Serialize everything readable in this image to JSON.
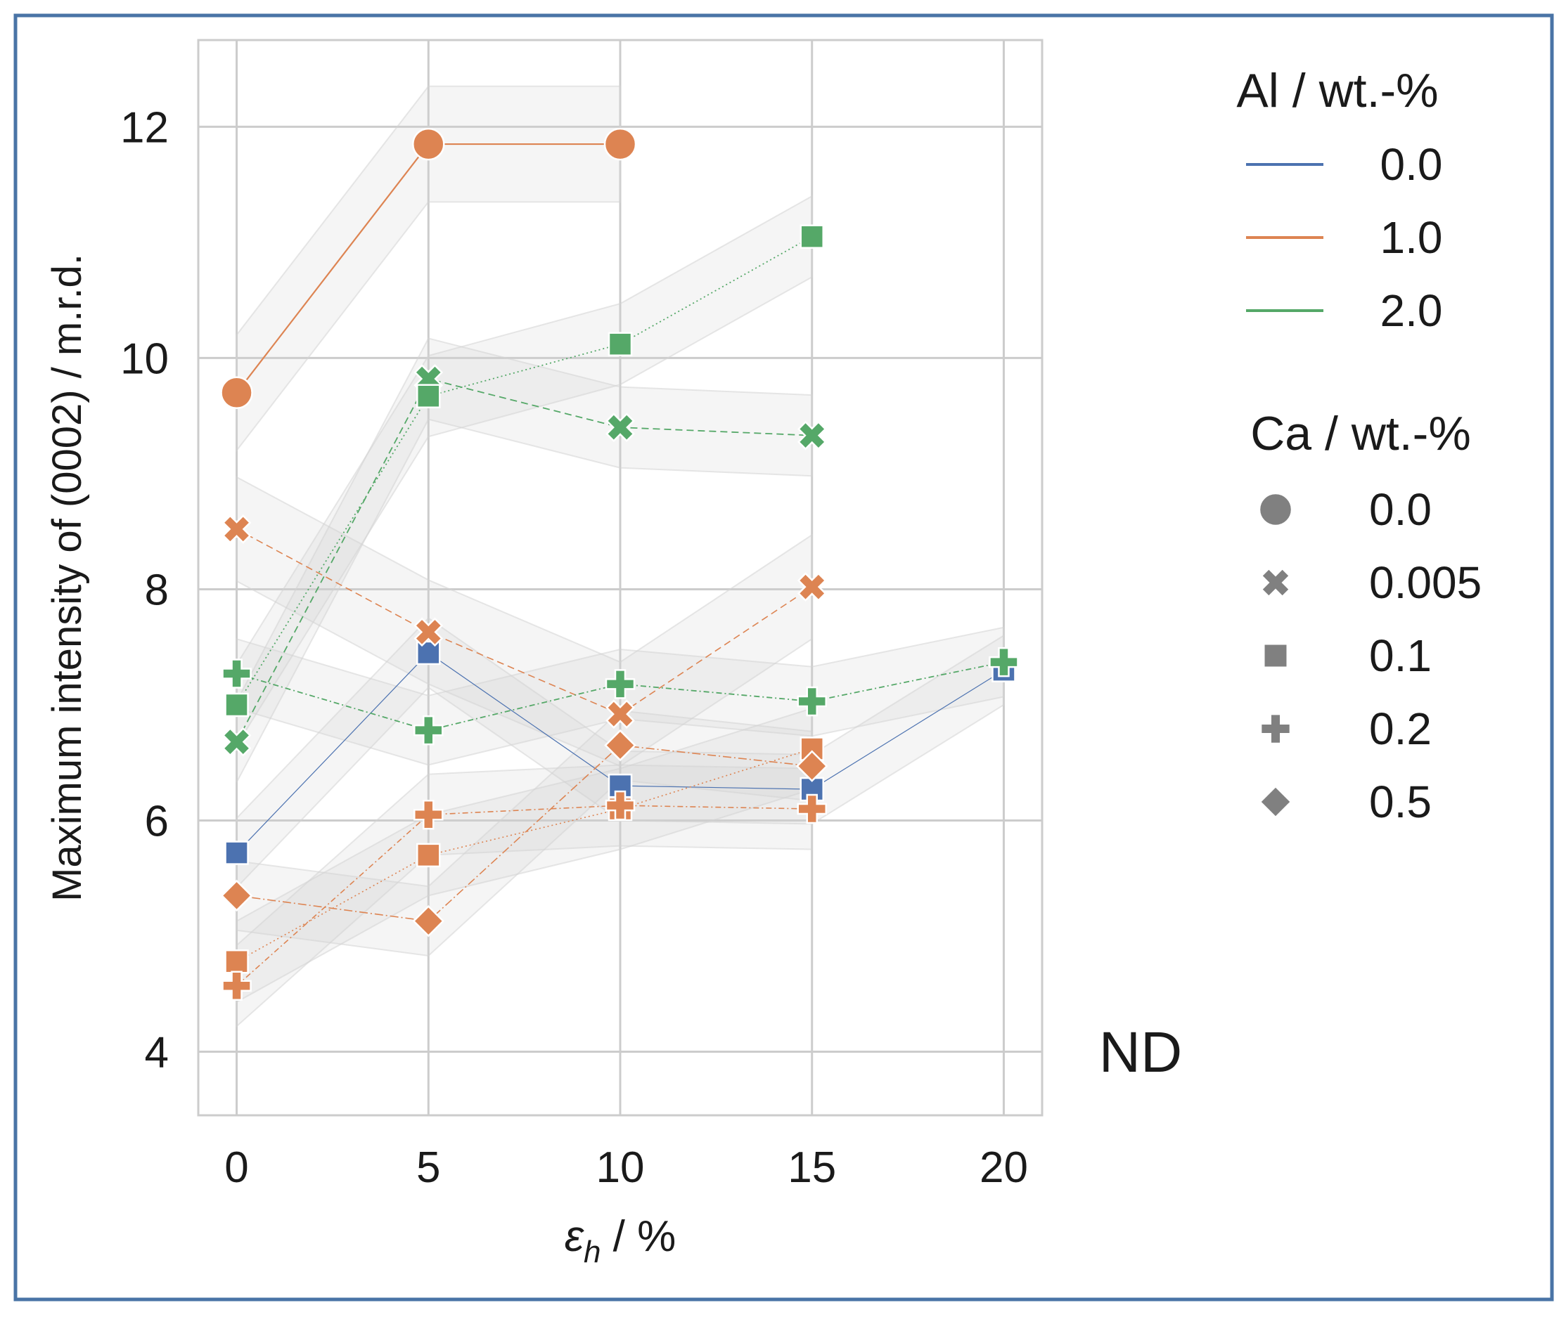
{
  "chart_data": {
    "type": "line",
    "title": "",
    "xlabel": "ε_h / %",
    "xlabel_main": "ε",
    "xlabel_sub": "h",
    "xlabel_rest": " / %",
    "ylabel": "Maximum intensity of (0002) / m.r.d.",
    "xlim": [
      -1,
      21
    ],
    "ylim": [
      3.45,
      12.75
    ],
    "x_ticks": [
      0,
      5,
      10,
      15,
      20
    ],
    "y_ticks": [
      4,
      6,
      8,
      10,
      12
    ],
    "grid": true,
    "legend_position": "right",
    "panel_label": "ND",
    "legend": {
      "hue_title": "Al / wt.-%",
      "hue_items": [
        {
          "label": "0.0",
          "color": "#4c72b0"
        },
        {
          "label": "1.0",
          "color": "#dd8452"
        },
        {
          "label": "2.0",
          "color": "#55a868"
        }
      ],
      "style_title": "Ca / wt.-%",
      "style_items": [
        {
          "label": "0.0",
          "marker": "circle"
        },
        {
          "label": "0.005",
          "marker": "x"
        },
        {
          "label": "0.1",
          "marker": "square"
        },
        {
          "label": "0.2",
          "marker": "plus"
        },
        {
          "label": "0.5",
          "marker": "diamond"
        }
      ]
    },
    "colors": {
      "blue": "#4c72b0",
      "orange": "#dd8452",
      "green": "#55a868",
      "grid": "#cccccc",
      "band": "#d3d3d3",
      "frame": "#4a74a6"
    },
    "series": [
      {
        "name": "Al 0.0 / Ca 0.1",
        "color": "blue",
        "marker": "square",
        "dash": "",
        "width": 1.2,
        "points": [
          [
            0,
            5.72
          ],
          [
            5,
            7.45
          ],
          [
            10,
            6.3
          ],
          [
            15,
            6.27
          ],
          [
            20,
            7.3
          ]
        ],
        "band": 0.3
      },
      {
        "name": "Al 1.0 / Ca 0.0",
        "color": "orange",
        "marker": "circle",
        "dash": "",
        "width": 2.2,
        "points": [
          [
            0,
            9.7
          ],
          [
            5,
            11.85
          ],
          [
            10,
            11.85
          ]
        ],
        "band": 0.5
      },
      {
        "name": "Al 1.0 / Ca 0.005",
        "color": "orange",
        "marker": "x",
        "dash": "10,6",
        "width": 1.6,
        "points": [
          [
            0,
            8.52
          ],
          [
            5,
            7.63
          ],
          [
            10,
            6.92
          ],
          [
            15,
            8.02
          ]
        ],
        "band": 0.45
      },
      {
        "name": "Al 1.0 / Ca 0.1",
        "color": "orange",
        "marker": "square",
        "dash": "2,4",
        "width": 1.6,
        "points": [
          [
            0,
            4.78
          ],
          [
            5,
            5.7
          ],
          [
            10,
            6.1
          ],
          [
            15,
            6.62
          ]
        ],
        "band": 0.35
      },
      {
        "name": "Al 1.0 / Ca 0.2",
        "color": "orange",
        "marker": "plus",
        "dash": "8,4,2,4",
        "width": 1.6,
        "points": [
          [
            0,
            4.57
          ],
          [
            5,
            6.05
          ],
          [
            10,
            6.13
          ],
          [
            15,
            6.1
          ]
        ],
        "band": 0.35
      },
      {
        "name": "Al 1.0 / Ca 0.5",
        "color": "orange",
        "marker": "diamond",
        "dash": "12,4,2,4",
        "width": 1.6,
        "points": [
          [
            0,
            5.35
          ],
          [
            5,
            5.13
          ],
          [
            10,
            6.65
          ],
          [
            15,
            6.47
          ]
        ],
        "band": 0.3
      },
      {
        "name": "Al 2.0 / Ca 0.005",
        "color": "green",
        "marker": "x",
        "dash": "10,6",
        "width": 1.8,
        "points": [
          [
            0,
            6.68
          ],
          [
            5,
            9.82
          ],
          [
            10,
            9.4
          ],
          [
            15,
            9.33
          ]
        ],
        "band": 0.35
      },
      {
        "name": "Al 2.0 / Ca 0.1",
        "color": "green",
        "marker": "square",
        "dash": "2,4",
        "width": 1.8,
        "points": [
          [
            0,
            7.0
          ],
          [
            5,
            9.67
          ],
          [
            10,
            10.12
          ],
          [
            15,
            11.05
          ]
        ],
        "band": 0.35
      },
      {
        "name": "Al 2.0 / Ca 0.2",
        "color": "green",
        "marker": "plus",
        "dash": "8,4,2,4",
        "width": 1.8,
        "points": [
          [
            0,
            7.27
          ],
          [
            5,
            6.78
          ],
          [
            10,
            7.18
          ],
          [
            15,
            7.03
          ],
          [
            20,
            7.37
          ]
        ],
        "band": 0.3
      }
    ]
  }
}
